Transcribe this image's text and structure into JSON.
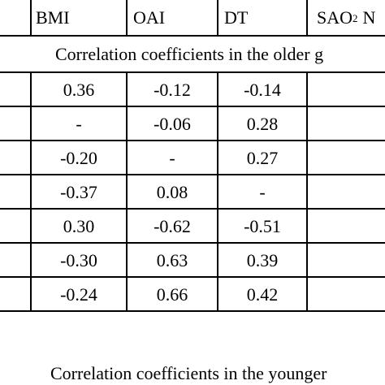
{
  "header": {
    "columns": [
      "BMI",
      "OAI",
      "DT"
    ],
    "sao2_main": "SAO",
    "sao2_sub": "2",
    "sao2_suffix": "N"
  },
  "sections": {
    "older": "Correlation coefficients in the older g",
    "younger": "Correlation coefficients in the younger"
  },
  "rows": [
    [
      "0.36",
      "-0.12",
      "-0.14"
    ],
    [
      "-",
      "-0.06",
      "0.28"
    ],
    [
      "-0.20",
      "-",
      "0.27"
    ],
    [
      "-0.37",
      "0.08",
      "-"
    ],
    [
      "0.30",
      "-0.62",
      "-0.51"
    ],
    [
      "-0.30",
      "0.63",
      "0.39"
    ],
    [
      "-0.24",
      "0.66",
      "0.42"
    ]
  ]
}
